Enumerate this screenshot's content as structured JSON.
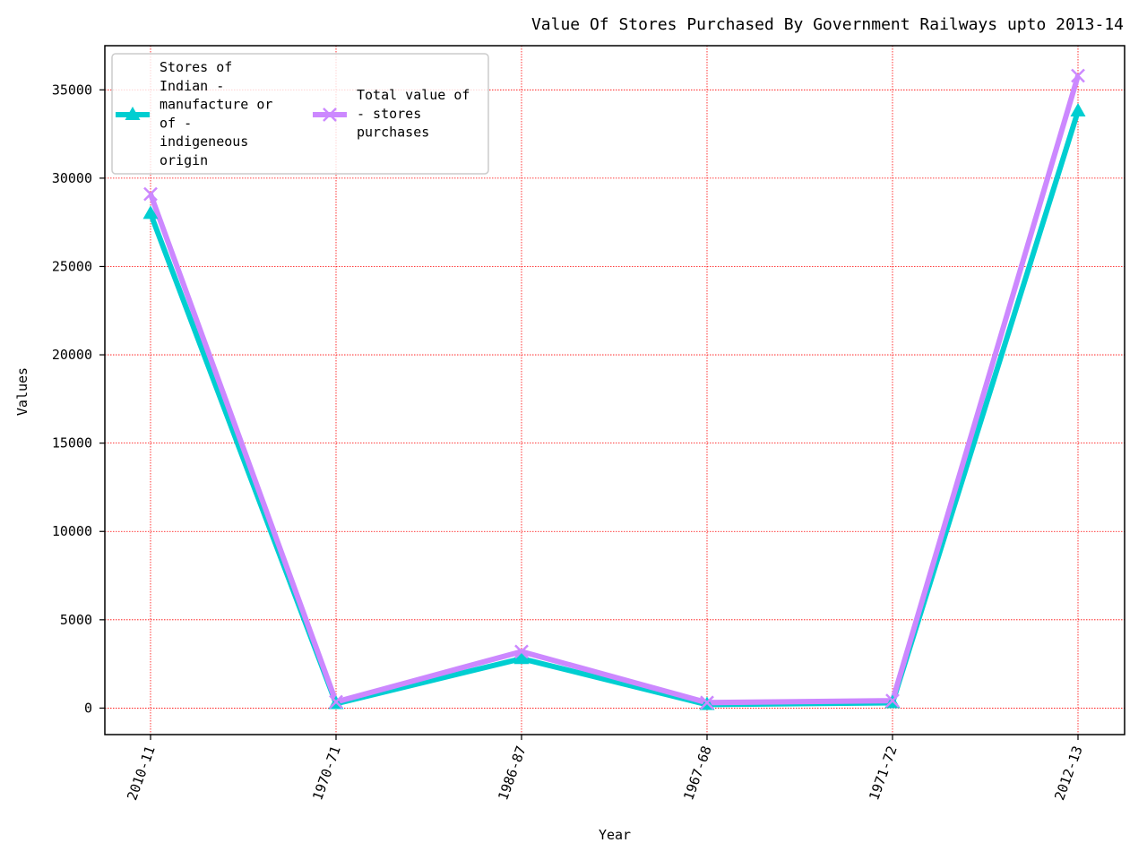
{
  "chart_data": {
    "type": "line",
    "title": "Value Of Stores Purchased By Government Railways upto 2013-14",
    "xlabel": "Year",
    "ylabel": "Values",
    "categories": [
      "2010-11",
      "1970-71",
      "1986-87",
      "1967-68",
      "1971-72",
      "2012-13"
    ],
    "ylim": [
      -1500,
      37500
    ],
    "yticks": [
      0,
      5000,
      10000,
      15000,
      20000,
      25000,
      30000,
      35000
    ],
    "grid": true,
    "legend_position": "upper-left",
    "series": [
      {
        "name": "Stores of\nIndian -\nmanufacture or\nof -\nindigeneous\norigin",
        "values": [
          28000,
          250,
          2800,
          200,
          300,
          33800
        ],
        "color": "#00ced1",
        "marker": "triangle-up"
      },
      {
        "name": "Total value of\n- stores\npurchases",
        "values": [
          29100,
          350,
          3200,
          310,
          420,
          35800
        ],
        "color": "#cc88ff",
        "marker": "x"
      }
    ]
  }
}
